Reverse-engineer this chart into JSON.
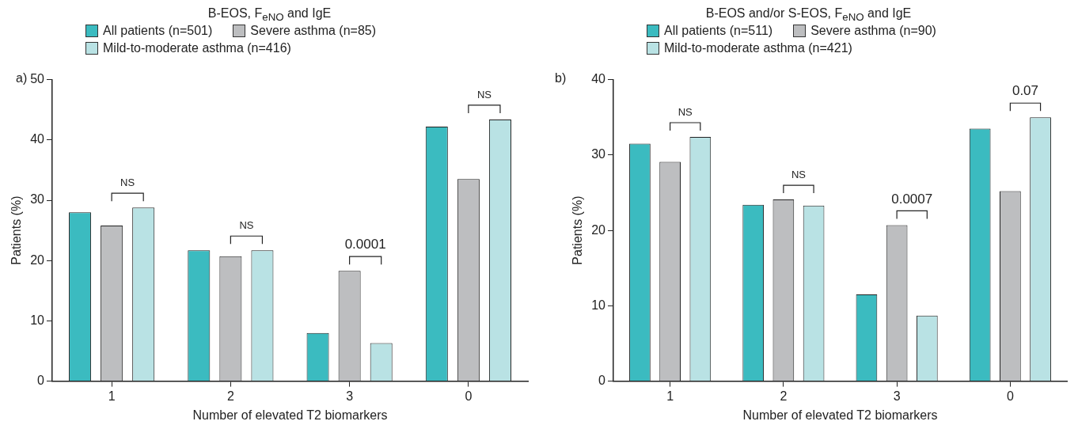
{
  "chart_data": [
    {
      "type": "bar",
      "title": "B-EOS, F$_{eNO}$ and IgE",
      "xlabel": "Number of elevated T2 biomarkers",
      "ylabel": "Patients (%)",
      "categories": [
        "1",
        "2",
        "3",
        "0"
      ],
      "series": [
        {
          "name": "All patients (n=501)",
          "color": "#3bbbc0",
          "values": [
            28.0,
            21.7,
            8.0,
            42.2
          ]
        },
        {
          "name": "Severe asthma (n=85)",
          "color": "#bdbec0",
          "values": [
            25.8,
            20.7,
            18.3,
            33.5
          ]
        },
        {
          "name": "Mild-to-moderate asthma (n=416)",
          "color": "#b9e2e4",
          "values": [
            28.8,
            21.7,
            6.3,
            43.4
          ]
        }
      ],
      "ylim": [
        0,
        50
      ],
      "yticks": [
        0,
        10,
        20,
        30,
        40,
        50
      ],
      "grid": false,
      "legend": "top",
      "annotations": [
        "a)",
        "NS",
        "NS",
        "0.0001",
        "NS"
      ]
    },
    {
      "type": "bar",
      "title": "B-EOS and/or S-EOS, F$_{eNO}$ and IgE",
      "xlabel": "Number of elevated T2 biomarkers",
      "ylabel": "Patients (%)",
      "categories": [
        "1",
        "2",
        "3",
        "0"
      ],
      "series": [
        {
          "name": "All patients (n=511)",
          "color": "#3bbbc0",
          "values": [
            31.5,
            23.4,
            11.5,
            33.5
          ]
        },
        {
          "name": "Severe asthma (n=90)",
          "color": "#bdbec0",
          "values": [
            29.1,
            24.1,
            20.7,
            25.2
          ]
        },
        {
          "name": "Mild-to-moderate asthma (n=421)",
          "color": "#b9e2e4",
          "values": [
            32.4,
            23.3,
            8.7,
            35.0
          ]
        }
      ],
      "ylim": [
        0,
        40
      ],
      "yticks": [
        0,
        10,
        20,
        30,
        40
      ],
      "grid": false,
      "legend": "top",
      "annotations": [
        "b)",
        "NS",
        "NS",
        "0.0007",
        "0.07"
      ]
    }
  ]
}
